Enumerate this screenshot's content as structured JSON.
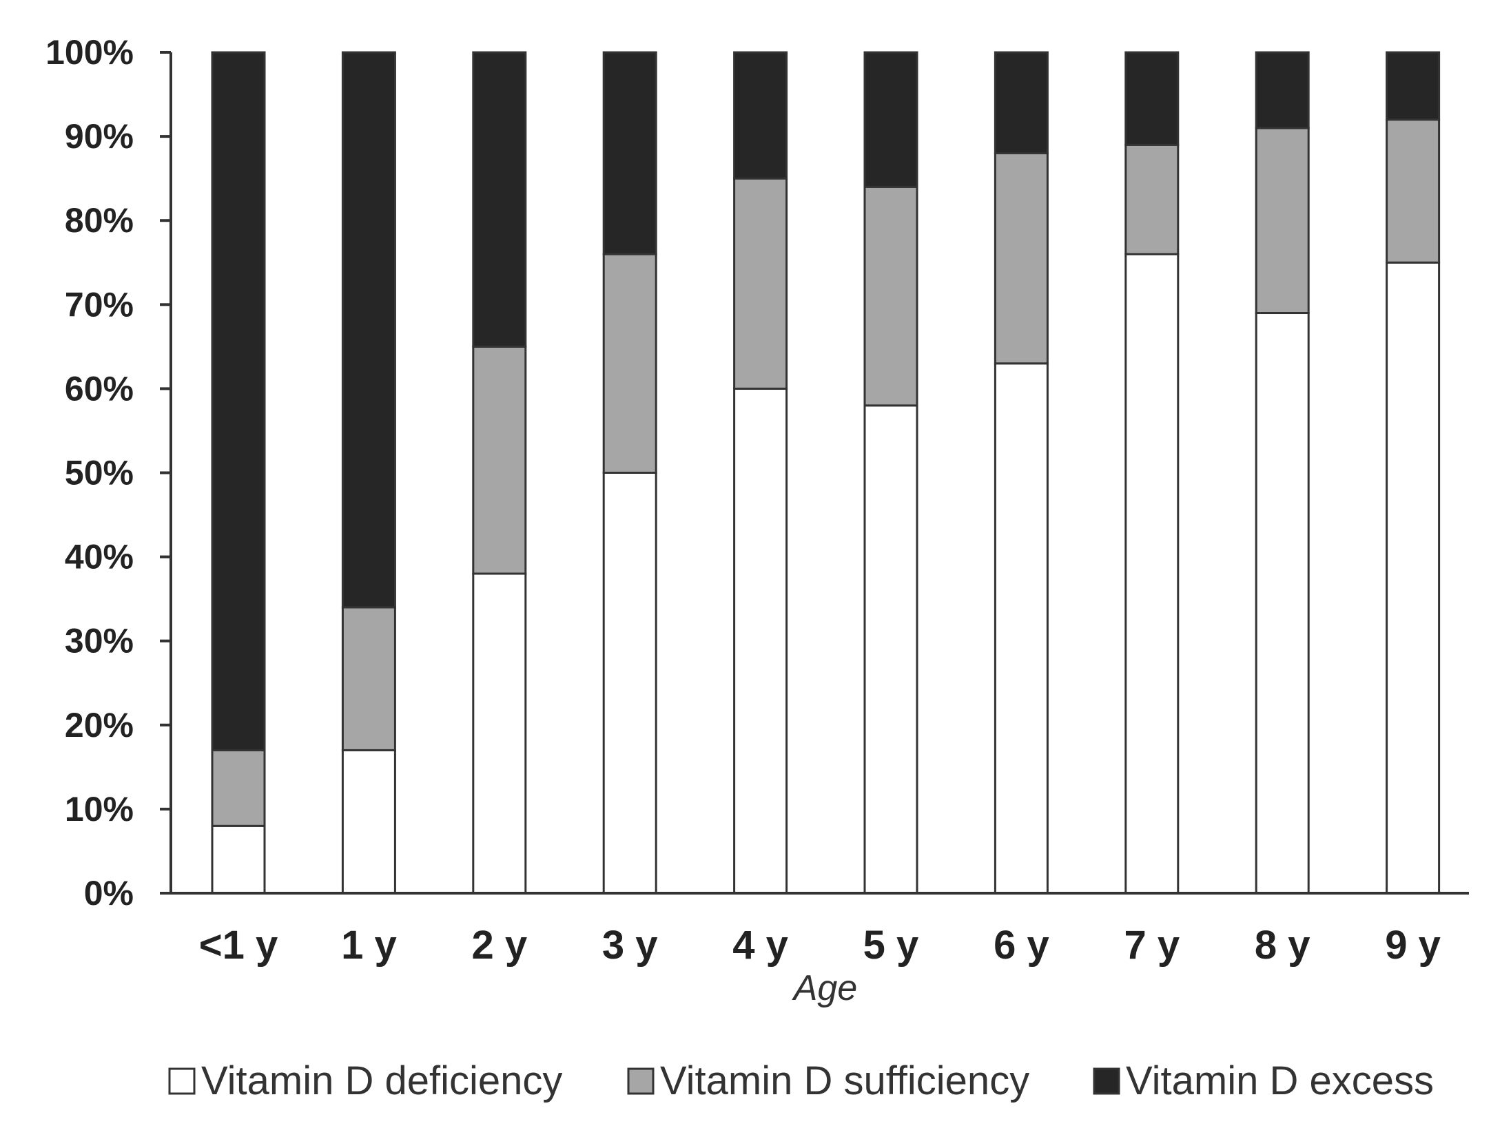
{
  "chart_data": {
    "type": "bar",
    "stacked": true,
    "title": "",
    "xlabel": "Age",
    "ylabel": "",
    "ylim": [
      0,
      100
    ],
    "yticks": [
      0,
      10,
      20,
      30,
      40,
      50,
      60,
      70,
      80,
      90,
      100
    ],
    "ytick_labels": [
      "0%",
      "10%",
      "20%",
      "30%",
      "40%",
      "50%",
      "60%",
      "70%",
      "80%",
      "90%",
      "100%"
    ],
    "categories": [
      "<1 y",
      "1 y",
      "2 y",
      "3 y",
      "4 y",
      "5 y",
      "6 y",
      "7 y",
      "8 y",
      "9 y"
    ],
    "series": [
      {
        "name": "Vitamin D deficiency",
        "color": "#ffffff",
        "values": [
          8,
          17,
          38,
          50,
          60,
          58,
          63,
          76,
          69,
          75
        ]
      },
      {
        "name": "Vitamin D sufficiency",
        "color": "#a6a6a6",
        "values": [
          9,
          17,
          27,
          26,
          25,
          26,
          25,
          13,
          22,
          17
        ]
      },
      {
        "name": "Vitamin D excess",
        "color": "#262626",
        "values": [
          83,
          66,
          35,
          24,
          15,
          16,
          12,
          11,
          9,
          8
        ]
      }
    ],
    "grid": false,
    "legend_position": "bottom"
  }
}
